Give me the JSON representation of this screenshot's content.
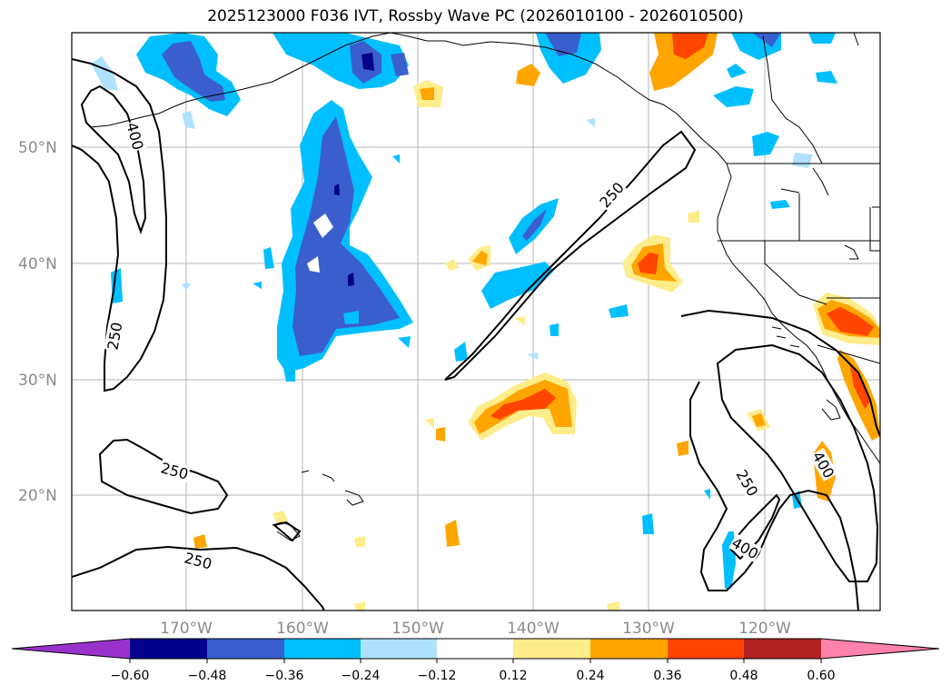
{
  "title": "2025123000 F036 IVT, Rossby Wave PC (2026010100 - 2026010500)",
  "latitude_labels": [
    "50°N",
    "40°N",
    "30°N",
    "20°N"
  ],
  "longitude_labels": [
    "170°W",
    "160°W",
    "150°W",
    "140°W",
    "130°W",
    "120°W"
  ],
  "contour_labels": [
    "400",
    "250",
    "250",
    "250",
    "250",
    "250",
    "400",
    "400"
  ],
  "colorbar": {
    "ticks": [
      "−0.60",
      "−0.48",
      "−0.36",
      "−0.24",
      "−0.12",
      "0.12",
      "0.24",
      "0.36",
      "0.48",
      "0.60"
    ],
    "colors": [
      "#9932cc",
      "#00008b",
      "#3a5fcd",
      "#00bfff",
      "#b0e2ff",
      "#ffffff",
      "#ffec8b",
      "#ffa500",
      "#ff4500",
      "#b22222",
      "#ff82ab"
    ]
  },
  "palette": {
    "neg_light": "#b0e2ff",
    "neg_mid": "#00bfff",
    "neg_strong": "#3a5fcd",
    "neg_max": "#00008b",
    "pos_light": "#ffec8b",
    "pos_mid": "#ffa500",
    "pos_strong": "#ff4500"
  }
}
